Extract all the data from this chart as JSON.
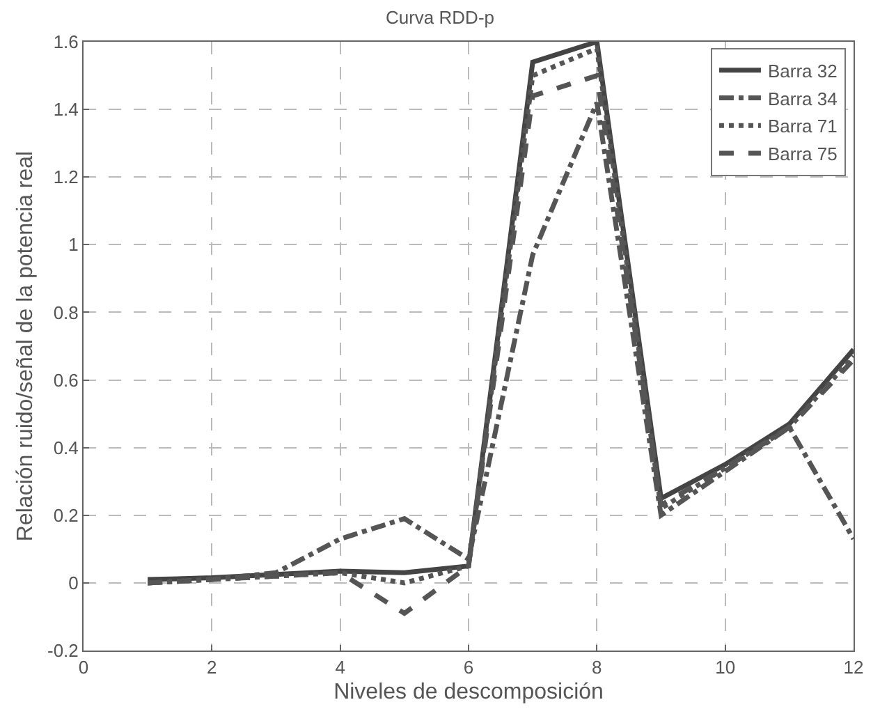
{
  "chart_data": {
    "type": "line",
    "title": "Curva RDD-p",
    "xlabel": "Niveles de descomposición",
    "ylabel": "Relación ruido/señal de la potencia real",
    "x": [
      1,
      2,
      3,
      4,
      5,
      6,
      7,
      8,
      9,
      10,
      11,
      12
    ],
    "series": [
      {
        "name": "Barra 32",
        "color": "#444444",
        "line_style": "solid",
        "values": [
          0.01,
          0.015,
          0.025,
          0.035,
          0.03,
          0.05,
          1.54,
          1.6,
          0.25,
          0.35,
          0.47,
          0.69
        ]
      },
      {
        "name": "Barra 34",
        "color": "#555555",
        "line_style": "dashdot",
        "values": [
          0.0,
          0.01,
          0.03,
          0.13,
          0.19,
          0.07,
          0.97,
          1.42,
          0.2,
          0.33,
          0.46,
          0.13
        ]
      },
      {
        "name": "Barra 71",
        "color": "#555555",
        "line_style": "dotted",
        "values": [
          0.0,
          0.01,
          0.02,
          0.03,
          0.0,
          0.05,
          1.5,
          1.58,
          0.22,
          0.34,
          0.46,
          0.67
        ]
      },
      {
        "name": "Barra 75",
        "color": "#555555",
        "line_style": "dashed",
        "values": [
          0.0,
          0.01,
          0.02,
          0.03,
          -0.09,
          0.05,
          1.44,
          1.5,
          0.23,
          0.34,
          0.46,
          0.66
        ]
      }
    ],
    "xlim": [
      0,
      12
    ],
    "xticks": [
      0,
      2,
      4,
      6,
      8,
      10,
      12
    ],
    "ylim": [
      -0.2,
      1.6
    ],
    "yticks": [
      -0.2,
      0,
      0.2,
      0.4,
      0.6,
      0.8,
      1,
      1.2,
      1.4,
      1.6
    ],
    "grid": true,
    "legend": "top right",
    "marker": "none"
  }
}
